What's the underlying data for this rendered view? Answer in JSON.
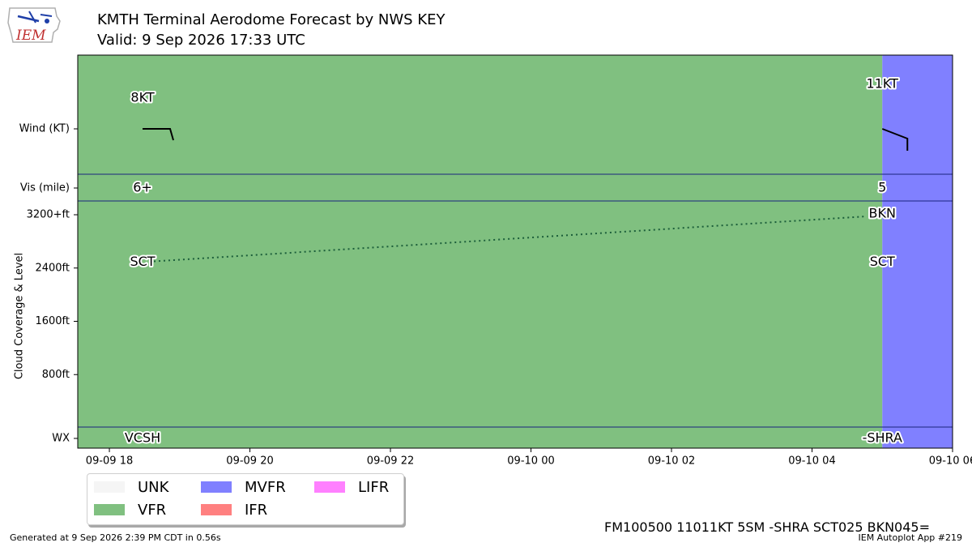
{
  "header": {
    "title": "KMTH Terminal Aerodome Forecast by NWS KEY",
    "subtitle": "Valid: 9 Sep 2026 17:33 UTC"
  },
  "logo": {
    "text": "IEM"
  },
  "colors": {
    "VFR": "#80c080",
    "MVFR": "#8080ff",
    "UNK": "#f5f5f5",
    "IFR": "#ff8080",
    "LIFR": "#ff80ff",
    "divider": "#1a237e"
  },
  "chart_data": {
    "type": "line",
    "xlim": [
      "2026-09-09 17:33",
      "2026-09-10 06:00"
    ],
    "x_ticks": [
      "09-09 18",
      "09-09 20",
      "09-09 22",
      "09-10 00",
      "09-10 02",
      "09-10 04",
      "09-10 06"
    ],
    "y_rows": [
      "Wind (KT)",
      "Vis (mile)",
      "Cloud Coverage & Level",
      "WX"
    ],
    "y_ticks": [
      "3200+ft",
      "2400ft",
      "1600ft",
      "800ft"
    ],
    "cloud_ylim": [
      0,
      3200
    ],
    "category_bands": [
      {
        "category": "VFR",
        "start": "2026-09-09 17:33",
        "end": "2026-09-10 05:00"
      },
      {
        "category": "MVFR",
        "start": "2026-09-10 05:00",
        "end": "2026-09-10 06:00"
      }
    ],
    "forecasts": [
      {
        "time": "2026-09-09 17:33",
        "wind_label": "8KT",
        "wind_dir_deg": 360,
        "wind_kt": 8,
        "vis_label": "6+",
        "wx": "VCSH",
        "clouds": [
          {
            "cover": "SCT",
            "level_ft": 2500
          }
        ]
      },
      {
        "time": "2026-09-10 05:00",
        "wind_label": "11KT",
        "wind_dir_deg": 110,
        "wind_kt": 11,
        "vis_label": "5",
        "wx": "-SHRA",
        "clouds": [
          {
            "cover": "SCT",
            "level_ft": 2500
          },
          {
            "cover": "BKN",
            "level_ft": 3200
          }
        ]
      }
    ]
  },
  "legend": [
    {
      "label": "UNK",
      "color": "#f5f5f5"
    },
    {
      "label": "MVFR",
      "color": "#8080ff"
    },
    {
      "label": "LIFR",
      "color": "#ff80ff"
    },
    {
      "label": "VFR",
      "color": "#80c080"
    },
    {
      "label": "IFR",
      "color": "#ff8080"
    }
  ],
  "taf_text": "FM100500 11011KT 5SM -SHRA SCT025 BKN045=",
  "footer": {
    "generated": "Generated at 9 Sep 2026 2:39 PM CDT in 0.56s",
    "app": "IEM Autoplot App #219"
  }
}
